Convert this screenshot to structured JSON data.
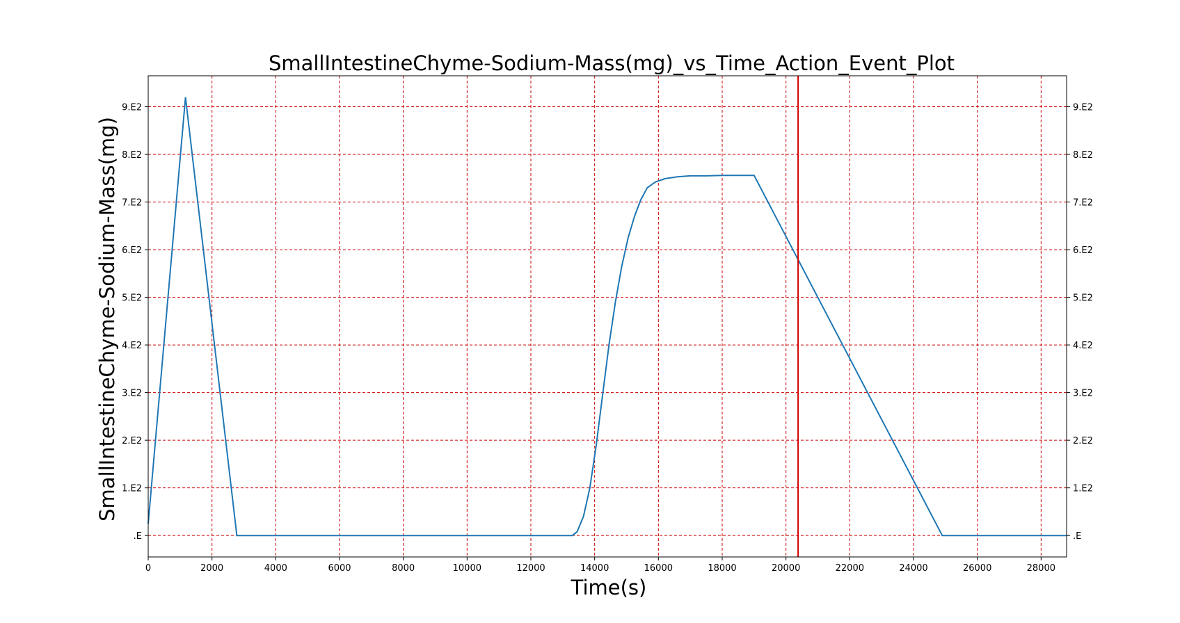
{
  "chart_data": {
    "type": "line",
    "title": "SmallIntestineChyme-Sodium-Mass(mg)_vs_Time_Action_Event_Plot",
    "xlabel": "Time(s)",
    "ylabel": "SmallIntestineChyme-Sodium-Mass(mg)",
    "xlim": [
      0,
      28800
    ],
    "ylim": [
      -45,
      965
    ],
    "grid": true,
    "grid_color": "#cc0000",
    "line_color": "#1f77b4",
    "event_color": "#d40000",
    "x_ticks": [
      {
        "value": 0,
        "label": "0"
      },
      {
        "value": 2000,
        "label": "2000"
      },
      {
        "value": 4000,
        "label": "4000"
      },
      {
        "value": 6000,
        "label": "6000"
      },
      {
        "value": 8000,
        "label": "8000"
      },
      {
        "value": 10000,
        "label": "10000"
      },
      {
        "value": 12000,
        "label": "12000"
      },
      {
        "value": 14000,
        "label": "14000"
      },
      {
        "value": 16000,
        "label": "16000"
      },
      {
        "value": 18000,
        "label": "18000"
      },
      {
        "value": 20000,
        "label": "20000"
      },
      {
        "value": 22000,
        "label": "22000"
      },
      {
        "value": 24000,
        "label": "24000"
      },
      {
        "value": 26000,
        "label": "26000"
      },
      {
        "value": 28000,
        "label": "28000"
      }
    ],
    "y_ticks": [
      {
        "value": 0,
        "label": ".E"
      },
      {
        "value": 100,
        "label": "1.E2"
      },
      {
        "value": 200,
        "label": "2.E2"
      },
      {
        "value": 300,
        "label": "3.E2"
      },
      {
        "value": 400,
        "label": "4.E2"
      },
      {
        "value": 500,
        "label": "5.E2"
      },
      {
        "value": 600,
        "label": "6.E2"
      },
      {
        "value": 700,
        "label": "7.E2"
      },
      {
        "value": 800,
        "label": "8.E2"
      },
      {
        "value": 900,
        "label": "9.E2"
      }
    ],
    "event_lines": [
      20380
    ],
    "series": [
      {
        "x": [
          0,
          1170,
          2780,
          13300,
          13450,
          13650,
          13850,
          14050,
          14250,
          14450,
          14650,
          14850,
          15050,
          15250,
          15450,
          15650,
          15900,
          16200,
          16600,
          17000,
          17500,
          18000,
          19000,
          24900,
          28800
        ],
        "y": [
          25,
          920,
          0,
          0,
          8,
          40,
          100,
          190,
          295,
          400,
          490,
          565,
          625,
          670,
          705,
          730,
          742,
          749,
          753,
          755,
          755,
          756,
          756,
          0,
          0
        ]
      }
    ]
  }
}
